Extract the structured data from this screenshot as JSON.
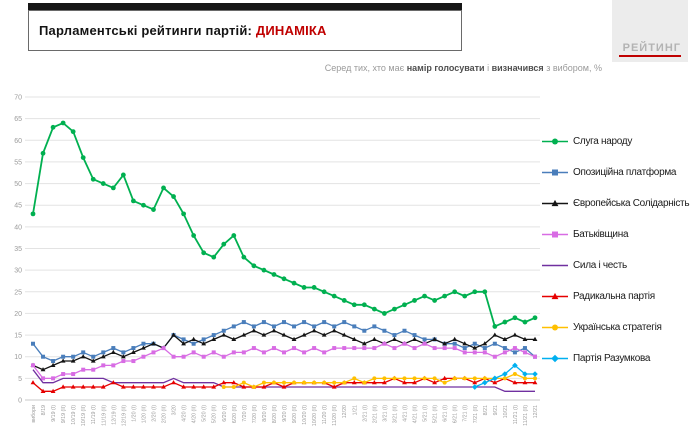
{
  "header": {
    "title_main": "Парламентські рейтинги партій: ",
    "title_accent": "ДИНАМІКА",
    "logo_text": "РЕЙТИНГ",
    "subtitle": {
      "p1": "Серед тих, хто має ",
      "b1": "намір голосувати",
      "p2": " і ",
      "b2": "визначився",
      "p3": " з вибором, %"
    }
  },
  "chart_data": {
    "type": "line",
    "title": "Парламентські рейтинги партій: ДИНАМІКА",
    "subtitle": "Серед тих, хто має намір голосувати і визначився з вибором, %",
    "xlabel": "",
    "ylabel": "",
    "ylim": [
      0,
      70
    ],
    "y_ticks": [
      0,
      5,
      10,
      15,
      20,
      25,
      30,
      35,
      40,
      45,
      50,
      55,
      60,
      65,
      70
    ],
    "grid": true,
    "legend_position": "right",
    "categories": [
      "вибори",
      "8/19",
      "9/19 (І)",
      "9/19 (ІІ)",
      "10/19 (І)",
      "10/19 (ІІ)",
      "11/19 (І)",
      "11/19 (ІІ)",
      "12/19 (І)",
      "12/19 (ІІ)",
      "1/20 (І)",
      "1/20 (ІІ)",
      "2/20 (І)",
      "2/20 (ІІ)",
      "3/20",
      "4/20 (І)",
      "4/20 (ІІ)",
      "5/20 (І)",
      "5/20 (ІІ)",
      "6/20 (І)",
      "6/20 (ІІ)",
      "7/20 (І)",
      "7/20 (ІІ)",
      "8/20 (І)",
      "8/20 (ІІ)",
      "9/20 (І)",
      "9/20 (ІІ)",
      "10/20 (І)",
      "10/20 (ІІ)",
      "11/20 (І)",
      "11/20 (ІІ)",
      "12/20",
      "1/21",
      "2/21 (І)",
      "2/21 (ІІ)",
      "3/21 (І)",
      "3/21 (ІІ)",
      "4/21 (І)",
      "4/21 (ІІ)",
      "5/21 (І)",
      "5/21 (ІІ)",
      "6/21 (І)",
      "6/21 (ІІ)",
      "7/21 (І)",
      "7/21 (ІІ)",
      "8/21",
      "9/21",
      "10/21",
      "11/21 (І)",
      "11/21 (ІІ)",
      "12/21"
    ],
    "series": [
      {
        "name": "Слуга народу",
        "color": "#00b050",
        "marker": "circle",
        "values": [
          43,
          57,
          63,
          64,
          62,
          56,
          51,
          50,
          49,
          52,
          46,
          45,
          44,
          49,
          47,
          43,
          38,
          34,
          33,
          36,
          38,
          33,
          31,
          30,
          29,
          28,
          27,
          26,
          26,
          25,
          24,
          23,
          22,
          22,
          21,
          20,
          21,
          22,
          23,
          24,
          23,
          24,
          25,
          24,
          25,
          25,
          17,
          18,
          19,
          18,
          19
        ]
      },
      {
        "name": "Опозиційна платформа",
        "color": "#4a7ebb",
        "marker": "square",
        "values": [
          13,
          10,
          9,
          10,
          10,
          11,
          10,
          11,
          12,
          11,
          12,
          13,
          13,
          12,
          15,
          14,
          13,
          14,
          15,
          16,
          17,
          18,
          17,
          18,
          17,
          18,
          17,
          18,
          17,
          18,
          17,
          18,
          17,
          16,
          17,
          16,
          15,
          16,
          15,
          14,
          14,
          13,
          13,
          12,
          13,
          12,
          13,
          12,
          11,
          12,
          10
        ]
      },
      {
        "name": "Європейська Солідарність",
        "color": "#141414",
        "marker": "triangle",
        "values": [
          8,
          7,
          8,
          9,
          9,
          10,
          9,
          10,
          11,
          10,
          11,
          12,
          13,
          12,
          15,
          13,
          14,
          13,
          14,
          15,
          14,
          15,
          16,
          15,
          16,
          15,
          14,
          15,
          16,
          15,
          16,
          15,
          14,
          13,
          14,
          13,
          14,
          13,
          14,
          13,
          14,
          13,
          14,
          13,
          12,
          13,
          15,
          14,
          15,
          14,
          14
        ]
      },
      {
        "name": "Батьківщина",
        "color": "#d86ce4",
        "marker": "square",
        "values": [
          8,
          5,
          5,
          6,
          6,
          7,
          7,
          8,
          8,
          9,
          9,
          10,
          11,
          12,
          10,
          10,
          11,
          10,
          11,
          10,
          11,
          11,
          12,
          11,
          12,
          11,
          12,
          11,
          12,
          11,
          12,
          12,
          12,
          12,
          12,
          13,
          12,
          13,
          12,
          13,
          12,
          12,
          12,
          11,
          11,
          11,
          10,
          11,
          12,
          11,
          10
        ]
      },
      {
        "name": "Сила і честь",
        "color": "#7030a0",
        "marker": "none",
        "values": [
          7,
          4,
          4,
          5,
          5,
          5,
          5,
          5,
          4,
          4,
          4,
          4,
          4,
          4,
          5,
          4,
          4,
          4,
          4,
          3,
          3,
          3,
          3,
          3,
          3,
          3,
          3,
          3,
          3,
          3,
          3,
          3,
          3,
          3,
          3,
          3,
          3,
          3,
          3,
          3,
          3,
          3,
          3,
          3,
          3,
          3,
          3,
          2,
          2,
          2,
          2
        ]
      },
      {
        "name": "Радикальна партія",
        "color": "#e60000",
        "marker": "triangle",
        "values": [
          4,
          2,
          2,
          3,
          3,
          3,
          3,
          3,
          4,
          3,
          3,
          3,
          3,
          3,
          4,
          3,
          3,
          3,
          3,
          4,
          4,
          3,
          3,
          3,
          4,
          3,
          4,
          4,
          4,
          4,
          3,
          4,
          4,
          4,
          4,
          4,
          5,
          4,
          4,
          5,
          4,
          5,
          5,
          5,
          4,
          5,
          4,
          5,
          4,
          4,
          4
        ]
      },
      {
        "name": "Українська стратегія",
        "color": "#ffc000",
        "marker": "circle",
        "values": [
          null,
          null,
          null,
          null,
          null,
          null,
          null,
          null,
          null,
          null,
          null,
          null,
          null,
          null,
          null,
          null,
          null,
          null,
          null,
          3,
          3,
          4,
          3,
          4,
          4,
          4,
          4,
          4,
          4,
          4,
          4,
          4,
          5,
          4,
          5,
          5,
          5,
          5,
          5,
          5,
          5,
          4,
          5,
          5,
          5,
          5,
          5,
          5,
          6,
          5,
          5
        ]
      },
      {
        "name": "Партія Разумкова",
        "color": "#00b0f0",
        "marker": "diamond",
        "values": [
          null,
          null,
          null,
          null,
          null,
          null,
          null,
          null,
          null,
          null,
          null,
          null,
          null,
          null,
          null,
          null,
          null,
          null,
          null,
          null,
          null,
          null,
          null,
          null,
          null,
          null,
          null,
          null,
          null,
          null,
          null,
          null,
          null,
          null,
          null,
          null,
          null,
          null,
          null,
          null,
          null,
          null,
          null,
          null,
          3,
          4,
          5,
          6,
          8,
          6,
          6
        ]
      }
    ]
  }
}
